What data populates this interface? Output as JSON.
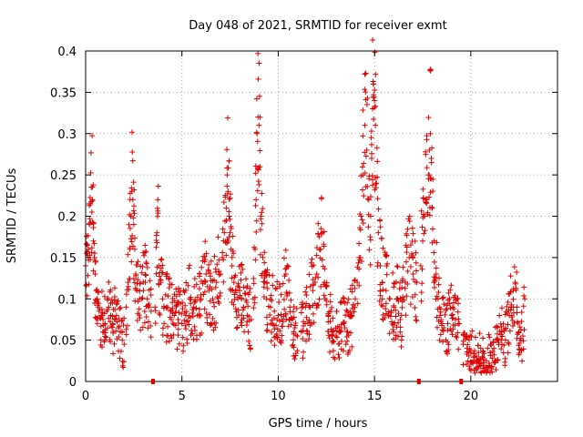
{
  "chart_data": {
    "type": "scatter",
    "title": "Day 048 of 2021, SRMTID for receiver exmt",
    "xlabel": "GPS time / hours",
    "ylabel": "SRMTID / TECUs",
    "xlim": [
      0,
      24.5
    ],
    "ylim": [
      0,
      0.4
    ],
    "xticks": [
      0,
      5,
      10,
      15,
      20
    ],
    "xtick_labels": [
      "0",
      "5",
      "10",
      "15",
      "20"
    ],
    "yticks": [
      0,
      0.05,
      0.1,
      0.15,
      0.2,
      0.25,
      0.3,
      0.35,
      0.4
    ],
    "ytick_labels": [
      "0",
      "0.05",
      "0.1",
      "0.15",
      "0.2",
      "0.25",
      "0.3",
      "0.35",
      "0.4"
    ],
    "grid": true,
    "marker": "+",
    "color": "#dd0000",
    "gap_markers_x": [
      3.5,
      17.3,
      19.5
    ],
    "series": [
      {
        "name": "SRMTID",
        "segments": [
          {
            "x": [
              0.0,
              0.05,
              0.1,
              0.15,
              0.2,
              0.25,
              0.3,
              0.35,
              0.4,
              0.45,
              0.5,
              0.55,
              0.6,
              0.65,
              0.7,
              0.8,
              0.9,
              1.0,
              1.1,
              1.2,
              1.3,
              1.4,
              1.5,
              1.6,
              1.7,
              1.8,
              1.9,
              2.0
            ],
            "y": [
              0.14,
              0.155,
              0.165,
              0.16,
              0.19,
              0.215,
              0.235,
              0.22,
              0.17,
              0.15,
              0.13,
              0.11,
              0.1,
              0.09,
              0.085,
              0.08,
              0.075,
              0.07,
              0.085,
              0.09,
              0.08,
              0.07,
              0.075,
              0.08,
              0.065,
              0.06,
              0.05,
              0.045
            ]
          },
          {
            "x": [
              2.1,
              2.2,
              2.3,
              2.35,
              2.4,
              2.45,
              2.5,
              2.55,
              2.6,
              2.7,
              2.8,
              2.9,
              3.0,
              3.1,
              3.2,
              3.3,
              3.4
            ],
            "y": [
              0.09,
              0.12,
              0.16,
              0.2,
              0.23,
              0.22,
              0.19,
              0.16,
              0.13,
              0.11,
              0.1,
              0.1,
              0.11,
              0.12,
              0.1,
              0.09,
              0.085
            ]
          },
          {
            "x": [
              3.6,
              3.7,
              3.75,
              3.8,
              3.9,
              4.0,
              4.2,
              4.4,
              4.6,
              4.8,
              5.0,
              5.2,
              5.4,
              5.6,
              5.8,
              6.0,
              6.2,
              6.4,
              6.6,
              6.8,
              7.0
            ],
            "y": [
              0.09,
              0.18,
              0.22,
              0.14,
              0.12,
              0.1,
              0.09,
              0.085,
              0.08,
              0.075,
              0.07,
              0.08,
              0.1,
              0.09,
              0.08,
              0.1,
              0.12,
              0.11,
              0.1,
              0.12,
              0.13
            ]
          },
          {
            "x": [
              7.1,
              7.2,
              7.3,
              7.35,
              7.4,
              7.45,
              7.5,
              7.55,
              7.6,
              7.7,
              7.8,
              7.9,
              8.0,
              8.1,
              8.2,
              8.4,
              8.6
            ],
            "y": [
              0.15,
              0.18,
              0.21,
              0.25,
              0.23,
              0.2,
              0.18,
              0.16,
              0.14,
              0.12,
              0.11,
              0.1,
              0.11,
              0.1,
              0.09,
              0.08,
              0.075
            ]
          },
          {
            "x": [
              8.7,
              8.8,
              8.85,
              8.9,
              8.95,
              9.0,
              9.05,
              9.1,
              9.2,
              9.3,
              9.4,
              9.6,
              9.8,
              10.0,
              10.2,
              10.4,
              10.6,
              10.8,
              11.0
            ],
            "y": [
              0.1,
              0.16,
              0.22,
              0.3,
              0.32,
              0.31,
              0.26,
              0.2,
              0.15,
              0.12,
              0.1,
              0.09,
              0.085,
              0.08,
              0.075,
              0.13,
              0.09,
              0.06,
              0.055
            ]
          },
          {
            "x": [
              11.2,
              11.4,
              11.6,
              11.8,
              12.0,
              12.2,
              12.3,
              12.4,
              12.6,
              12.8,
              13.0,
              13.2,
              13.4,
              13.6,
              13.8,
              14.0
            ],
            "y": [
              0.06,
              0.07,
              0.09,
              0.11,
              0.13,
              0.16,
              0.18,
              0.12,
              0.08,
              0.06,
              0.055,
              0.06,
              0.07,
              0.06,
              0.08,
              0.1
            ]
          },
          {
            "x": [
              14.1,
              14.2,
              14.3,
              14.4,
              14.5,
              14.6,
              14.7,
              14.8,
              14.85,
              14.9,
              14.95,
              15.0,
              15.05,
              15.1,
              15.2,
              15.3,
              15.4,
              15.6,
              15.8,
              16.0,
              16.2,
              16.4,
              16.6,
              16.8,
              17.0,
              17.2
            ],
            "y": [
              0.12,
              0.15,
              0.2,
              0.25,
              0.31,
              0.28,
              0.22,
              0.2,
              0.27,
              0.33,
              0.36,
              0.34,
              0.31,
              0.24,
              0.18,
              0.14,
              0.12,
              0.11,
              0.1,
              0.09,
              0.1,
              0.08,
              0.12,
              0.15,
              0.13,
              0.12
            ]
          },
          {
            "x": [
              17.4,
              17.5,
              17.6,
              17.7,
              17.8,
              17.85,
              17.9,
              17.95,
              18.0,
              18.1,
              18.2,
              18.3,
              18.4,
              18.5,
              18.6,
              18.8,
              19.0,
              19.2,
              19.4
            ],
            "y": [
              0.14,
              0.17,
              0.2,
              0.22,
              0.25,
              0.28,
              0.3,
              0.27,
              0.21,
              0.17,
              0.13,
              0.1,
              0.08,
              0.07,
              0.065,
              0.07,
              0.08,
              0.075,
              0.07
            ]
          },
          {
            "x": [
              19.6,
              19.8,
              20.0,
              20.2,
              20.4,
              20.6,
              20.8,
              21.0,
              21.2,
              21.4,
              21.6,
              21.8,
              22.0,
              22.1,
              22.2,
              22.3,
              22.4,
              22.5,
              22.6,
              22.7,
              22.8
            ],
            "y": [
              0.045,
              0.04,
              0.035,
              0.03,
              0.035,
              0.03,
              0.025,
              0.035,
              0.04,
              0.05,
              0.06,
              0.05,
              0.08,
              0.09,
              0.11,
              0.12,
              0.09,
              0.06,
              0.05,
              0.055,
              0.1
            ]
          }
        ]
      }
    ]
  }
}
